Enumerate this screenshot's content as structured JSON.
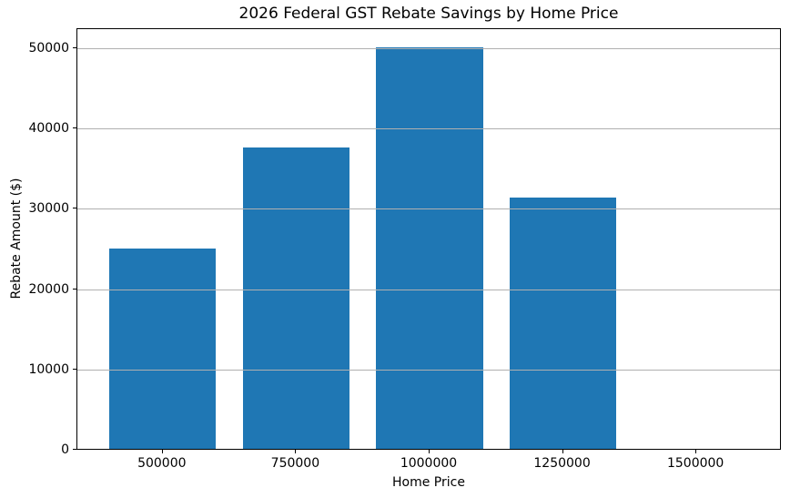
{
  "chart_data": {
    "type": "bar",
    "title": "2026 Federal GST Rebate Savings by Home Price",
    "xlabel": "Home Price",
    "ylabel": "Rebate Amount ($)",
    "categories": [
      "500000",
      "750000",
      "1000000",
      "1250000",
      "1500000"
    ],
    "values": [
      25000,
      37500,
      50000,
      31250,
      0
    ],
    "ylim": [
      0,
      52500
    ],
    "yticks": [
      0,
      10000,
      20000,
      30000,
      40000,
      50000
    ],
    "grid": "y",
    "grid_on_top_of_bars": true,
    "legend_position": "none",
    "bar_color": "#1f77b4",
    "grid_color": "#b0b0b0",
    "axis_color": "#000000",
    "text_color": "#000000",
    "background_color": "#ffffff",
    "bar_width_fraction": 0.8
  }
}
